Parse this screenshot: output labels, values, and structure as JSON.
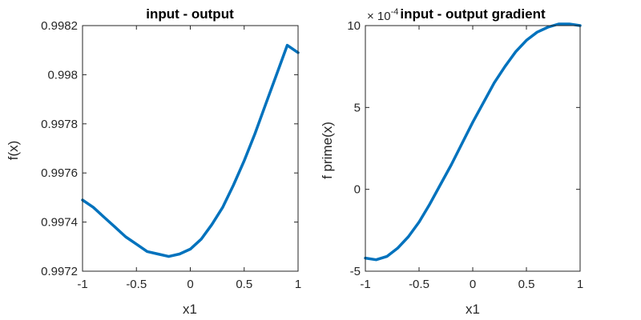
{
  "chart_data": [
    {
      "type": "line",
      "title": "input - output",
      "xlabel": "x1",
      "ylabel": "f(x)",
      "xlim": [
        -1,
        1
      ],
      "ylim": [
        0.9972,
        0.9982
      ],
      "xticks": [
        -1,
        -0.5,
        0,
        0.5,
        1
      ],
      "xtick_labels": [
        "-1",
        "-0.5",
        "0",
        "0.5",
        "1"
      ],
      "yticks": [
        0.9972,
        0.9974,
        0.9976,
        0.9978,
        0.998,
        0.9982
      ],
      "ytick_labels": [
        "0.9972",
        "0.9974",
        "0.9976",
        "0.9978",
        "0.998",
        "0.9982"
      ],
      "grid": false,
      "color": "#0072BD",
      "series": [
        {
          "x": [
            -1,
            -0.9,
            -0.8,
            -0.7,
            -0.6,
            -0.5,
            -0.4,
            -0.3,
            -0.2,
            -0.1,
            0,
            0.1,
            0.2,
            0.3,
            0.4,
            0.5,
            0.6,
            0.7,
            0.8,
            0.9,
            1
          ],
          "values": [
            0.99749,
            0.99746,
            0.99742,
            0.99738,
            0.99734,
            0.99731,
            0.99728,
            0.99727,
            0.99726,
            0.99727,
            0.99729,
            0.99733,
            0.99739,
            0.99746,
            0.99755,
            0.99765,
            0.99776,
            0.99788,
            0.998,
            0.99812,
            0.99809
          ]
        }
      ]
    },
    {
      "type": "line",
      "title": "input - output gradient",
      "xlabel": "x1",
      "ylabel": "f prime(x)",
      "xlim": [
        -1,
        1
      ],
      "ylim": [
        -5,
        10
      ],
      "xticks": [
        -1,
        -0.5,
        0,
        0.5,
        1
      ],
      "xtick_labels": [
        "-1",
        "-0.5",
        "0",
        "0.5",
        "1"
      ],
      "yticks": [
        -5,
        0,
        5,
        10
      ],
      "ytick_labels": [
        "-5",
        "0",
        "5",
        "10"
      ],
      "exponent_base": "× 10",
      "exponent_power": "-4",
      "grid": false,
      "color": "#0072BD",
      "series": [
        {
          "x": [
            -1,
            -0.9,
            -0.8,
            -0.7,
            -0.6,
            -0.5,
            -0.4,
            -0.3,
            -0.2,
            -0.1,
            0,
            0.1,
            0.2,
            0.3,
            0.4,
            0.5,
            0.6,
            0.7,
            0.8,
            0.9,
            1
          ],
          "values": [
            -4.2,
            -4.3,
            -4.1,
            -3.6,
            -2.9,
            -2.0,
            -0.9,
            0.3,
            1.5,
            2.8,
            4.1,
            5.3,
            6.5,
            7.5,
            8.4,
            9.1,
            9.6,
            9.9,
            10.1,
            10.1,
            10.0
          ]
        }
      ]
    }
  ]
}
